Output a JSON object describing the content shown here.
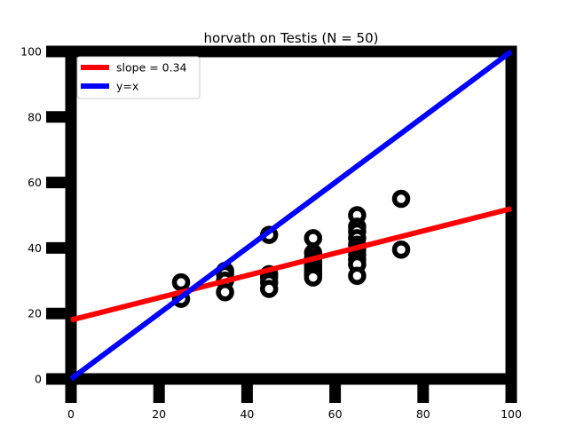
{
  "chart_data": {
    "type": "scatter",
    "title": "horvath on Testis (N = 50)",
    "xlabel": "",
    "ylabel": "",
    "xlim": [
      0,
      100
    ],
    "ylim": [
      0,
      100
    ],
    "xticks": [
      0,
      20,
      40,
      60,
      80,
      100
    ],
    "yticks": [
      0,
      20,
      40,
      60,
      80,
      100
    ],
    "grid": false,
    "legend_position": "top-left",
    "points": {
      "x": [
        25,
        25,
        35,
        35,
        35,
        35,
        45,
        45,
        45,
        45,
        45,
        55,
        55,
        55,
        55,
        55,
        55,
        55,
        55,
        55,
        65,
        65,
        65,
        65,
        65,
        65,
        65,
        65,
        65,
        65,
        75,
        75
      ],
      "y": [
        29.5,
        24.5,
        33,
        32,
        30,
        26.5,
        44,
        32,
        31,
        29.5,
        27.5,
        43,
        38.5,
        37,
        36,
        35,
        34,
        33,
        32,
        31,
        50,
        46.5,
        45,
        43,
        41,
        39.5,
        38,
        36.5,
        35,
        31.5,
        55,
        39.5
      ],
      "color": "#000000"
    },
    "lines": [
      {
        "name": "slope = 0.34",
        "color": "#ff0000",
        "x": [
          0,
          100
        ],
        "y": [
          18,
          52
        ]
      },
      {
        "name": "y=x",
        "color": "#0000ff",
        "x": [
          0,
          100
        ],
        "y": [
          0,
          100
        ]
      }
    ]
  }
}
